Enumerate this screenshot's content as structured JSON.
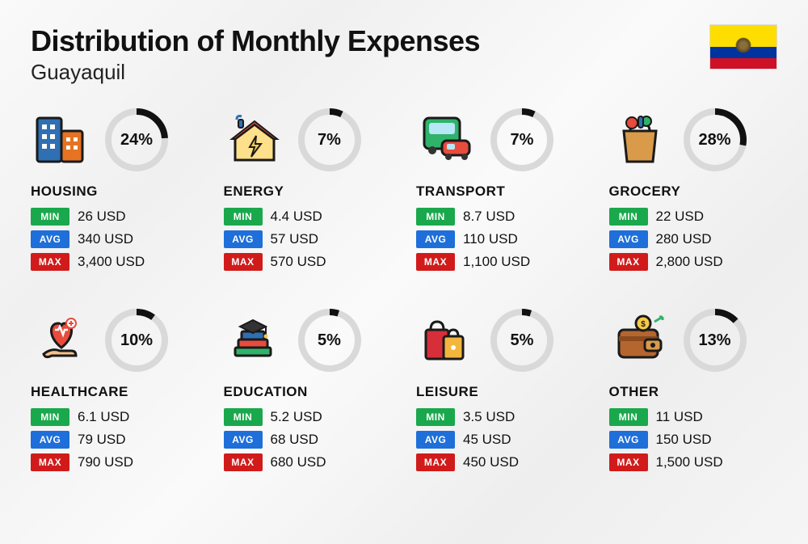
{
  "header": {
    "title": "Distribution of Monthly Expenses",
    "subtitle": "Guayaquil",
    "flag": {
      "colors": {
        "top": "#fedd00",
        "mid": "#0033a0",
        "bot": "#ce1126"
      }
    }
  },
  "ring_style": {
    "stroke_width": 8,
    "radius": 35,
    "bg_color": "#d9d9d9",
    "fg_color": "#111111",
    "font_size": 20
  },
  "badges": {
    "min": {
      "label": "MIN",
      "color": "#1aa84c"
    },
    "avg": {
      "label": "AVG",
      "color": "#1e6fd9"
    },
    "max": {
      "label": "MAX",
      "color": "#d11b1b"
    }
  },
  "currency": "USD",
  "categories": [
    {
      "key": "housing",
      "name": "HOUSING",
      "percent": 24,
      "min": "26",
      "avg": "340",
      "max": "3,400",
      "icon": "buildings"
    },
    {
      "key": "energy",
      "name": "ENERGY",
      "percent": 7,
      "min": "4.4",
      "avg": "57",
      "max": "570",
      "icon": "energy-house"
    },
    {
      "key": "transport",
      "name": "TRANSPORT",
      "percent": 7,
      "min": "8.7",
      "avg": "110",
      "max": "1,100",
      "icon": "bus-car"
    },
    {
      "key": "grocery",
      "name": "GROCERY",
      "percent": 28,
      "min": "22",
      "avg": "280",
      "max": "2,800",
      "icon": "grocery-bag"
    },
    {
      "key": "healthcare",
      "name": "HEALTHCARE",
      "percent": 10,
      "min": "6.1",
      "avg": "79",
      "max": "790",
      "icon": "heart-hand"
    },
    {
      "key": "education",
      "name": "EDUCATION",
      "percent": 5,
      "min": "5.2",
      "avg": "68",
      "max": "680",
      "icon": "grad-books"
    },
    {
      "key": "leisure",
      "name": "LEISURE",
      "percent": 5,
      "min": "3.5",
      "avg": "45",
      "max": "450",
      "icon": "shopping-bags"
    },
    {
      "key": "other",
      "name": "OTHER",
      "percent": 13,
      "min": "11",
      "avg": "150",
      "max": "1,500",
      "icon": "wallet"
    }
  ]
}
